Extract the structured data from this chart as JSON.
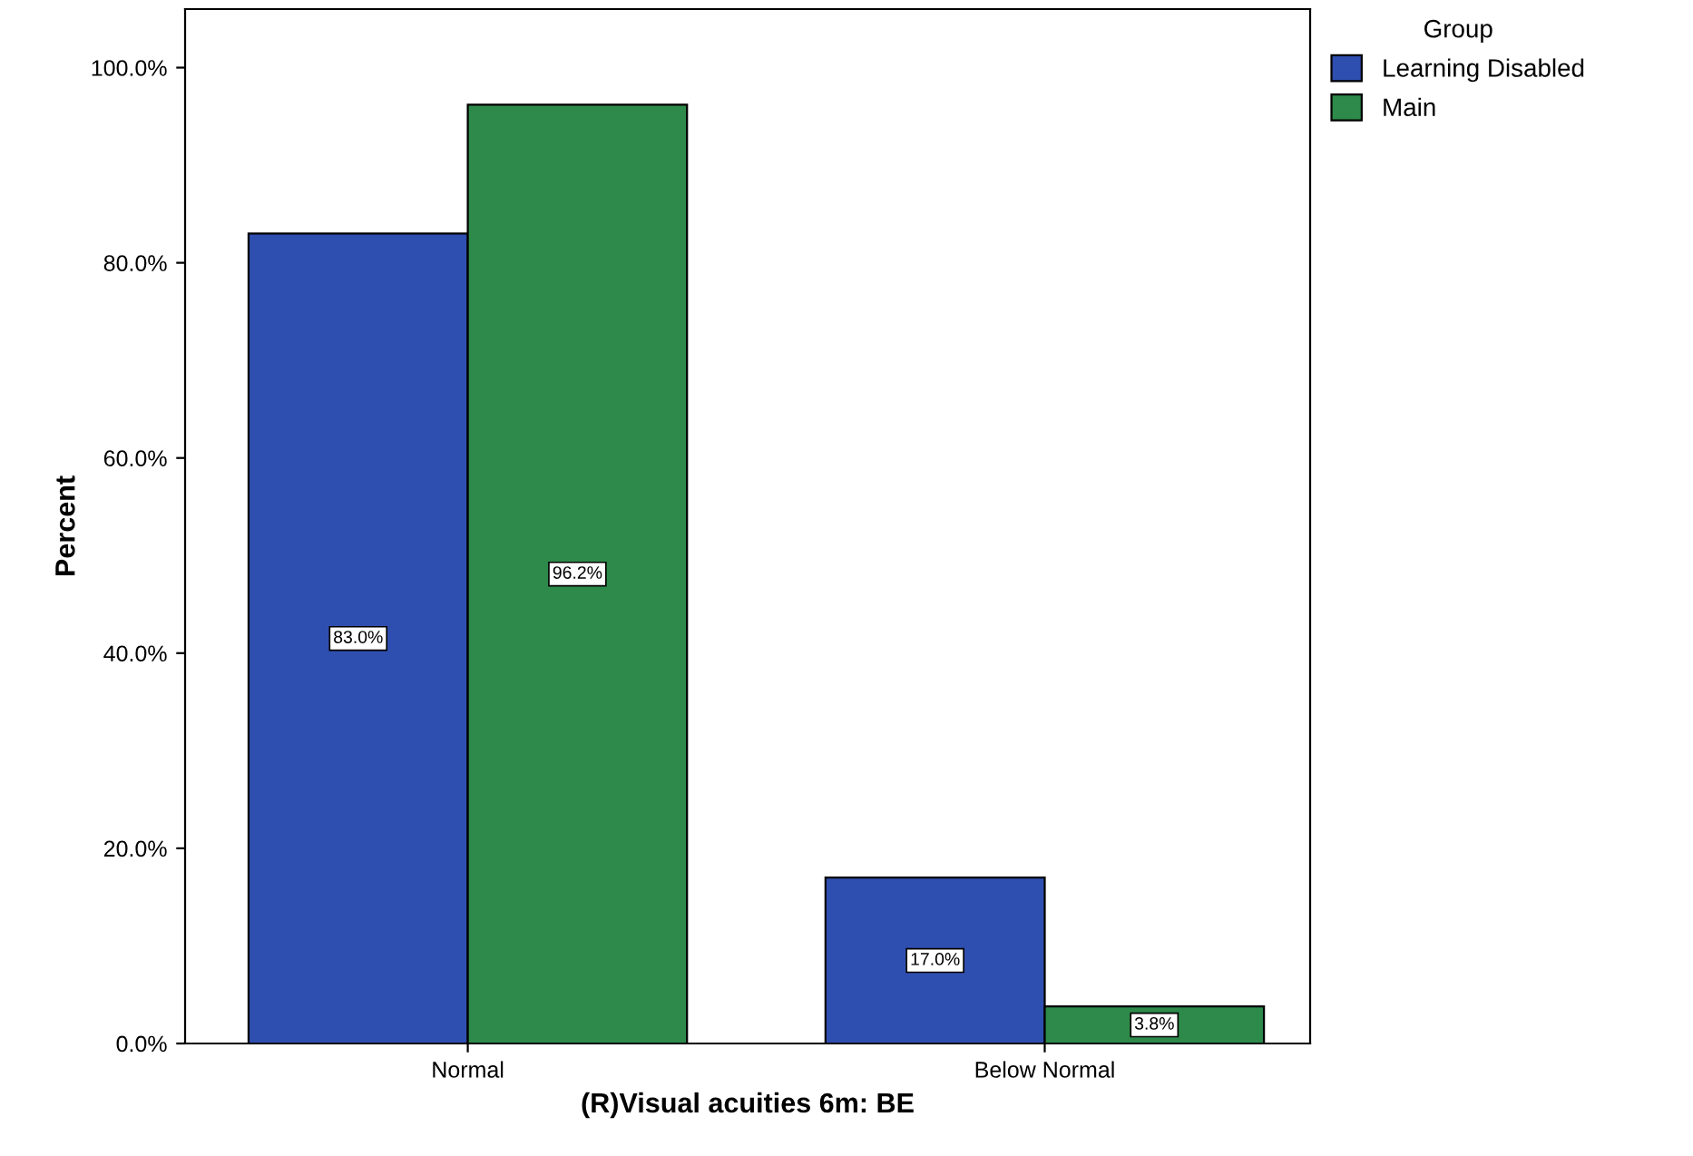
{
  "chart_data": {
    "type": "bar",
    "xlabel": "(R)Visual acuities 6m: BE",
    "ylabel": "Percent",
    "legend_title": "Group",
    "legend": "top right",
    "grid": false,
    "categories": [
      "Normal",
      "Below Normal"
    ],
    "series": [
      {
        "name": "Learning Disabled",
        "color": "#2f4fb0",
        "values": [
          83.0,
          17.0
        ],
        "value_labels": [
          "83.0%",
          "17.0%"
        ]
      },
      {
        "name": "Main",
        "color": "#2e8a4a",
        "values": [
          96.2,
          3.8
        ],
        "value_labels": [
          "96.2%",
          "3.8%"
        ]
      }
    ],
    "ylim": [
      0,
      106
    ],
    "yticks": [
      {
        "value": 0,
        "label": "0.0%"
      },
      {
        "value": 20,
        "label": "20.0%"
      },
      {
        "value": 40,
        "label": "40.0%"
      },
      {
        "value": 60,
        "label": "60.0%"
      },
      {
        "value": 80,
        "label": "80.0%"
      },
      {
        "value": 100,
        "label": "100.0%"
      }
    ]
  }
}
